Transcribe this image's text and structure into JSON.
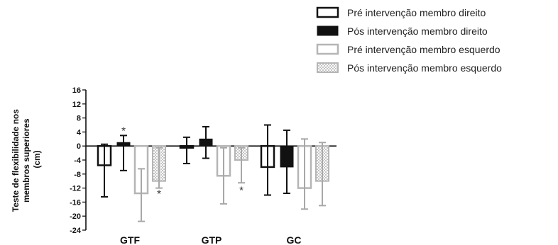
{
  "chart_data": {
    "type": "bar",
    "categories": [
      "GTF",
      "GTP",
      "GC"
    ],
    "ylabel": [
      "Teste de flexibilidade nos",
      "membros superiores",
      "(cm)"
    ],
    "ylim": [
      -24,
      16
    ],
    "yticks": [
      16,
      12,
      8,
      4,
      0,
      -4,
      -8,
      -12,
      -16,
      -20,
      -24
    ],
    "ytick_labels": [
      "16",
      "12",
      "8",
      "4",
      "0",
      "-4",
      "-8",
      "-12",
      "-16",
      "-20",
      "-24"
    ],
    "legend_position": "top-right",
    "series": [
      {
        "name": "Pré intervenção membro direito",
        "style": "outline-black",
        "color": "#111111",
        "values": [
          -5.5,
          -0.5,
          -6
        ],
        "err_low": [
          -14.5,
          -5,
          -14
        ],
        "err_high": [
          0.5,
          2.5,
          6
        ]
      },
      {
        "name": "Pós intervenção membro direito",
        "style": "solid-black",
        "color": "#111111",
        "values": [
          1,
          2,
          -6
        ],
        "err_low": [
          -7,
          -3.5,
          -13.5
        ],
        "err_high": [
          3,
          5.5,
          4.5
        ]
      },
      {
        "name": "Pré intervenção membro esquerdo",
        "style": "outline-gray",
        "color": "#b5b5b5",
        "values": [
          -13.5,
          -8.5,
          -12
        ],
        "err_low": [
          -21.5,
          -16.5,
          -18
        ],
        "err_high": [
          -6.5,
          -0.5,
          2
        ]
      },
      {
        "name": "Pós intervenção membro esquerdo",
        "style": "hatched-gray",
        "color": "#b5b5b5",
        "values": [
          -10,
          -4,
          -10
        ],
        "err_low": [
          -12,
          -10.5,
          -17
        ],
        "err_high": [
          -0.5,
          -0.5,
          1
        ]
      }
    ],
    "annotations": [
      {
        "text": "*",
        "category": "GTF",
        "series": 1,
        "y": 5
      },
      {
        "text": "*",
        "category": "GTF",
        "series": 3,
        "y": -13
      },
      {
        "text": "*",
        "category": "GTP",
        "series": 3,
        "y": -12
      }
    ]
  }
}
